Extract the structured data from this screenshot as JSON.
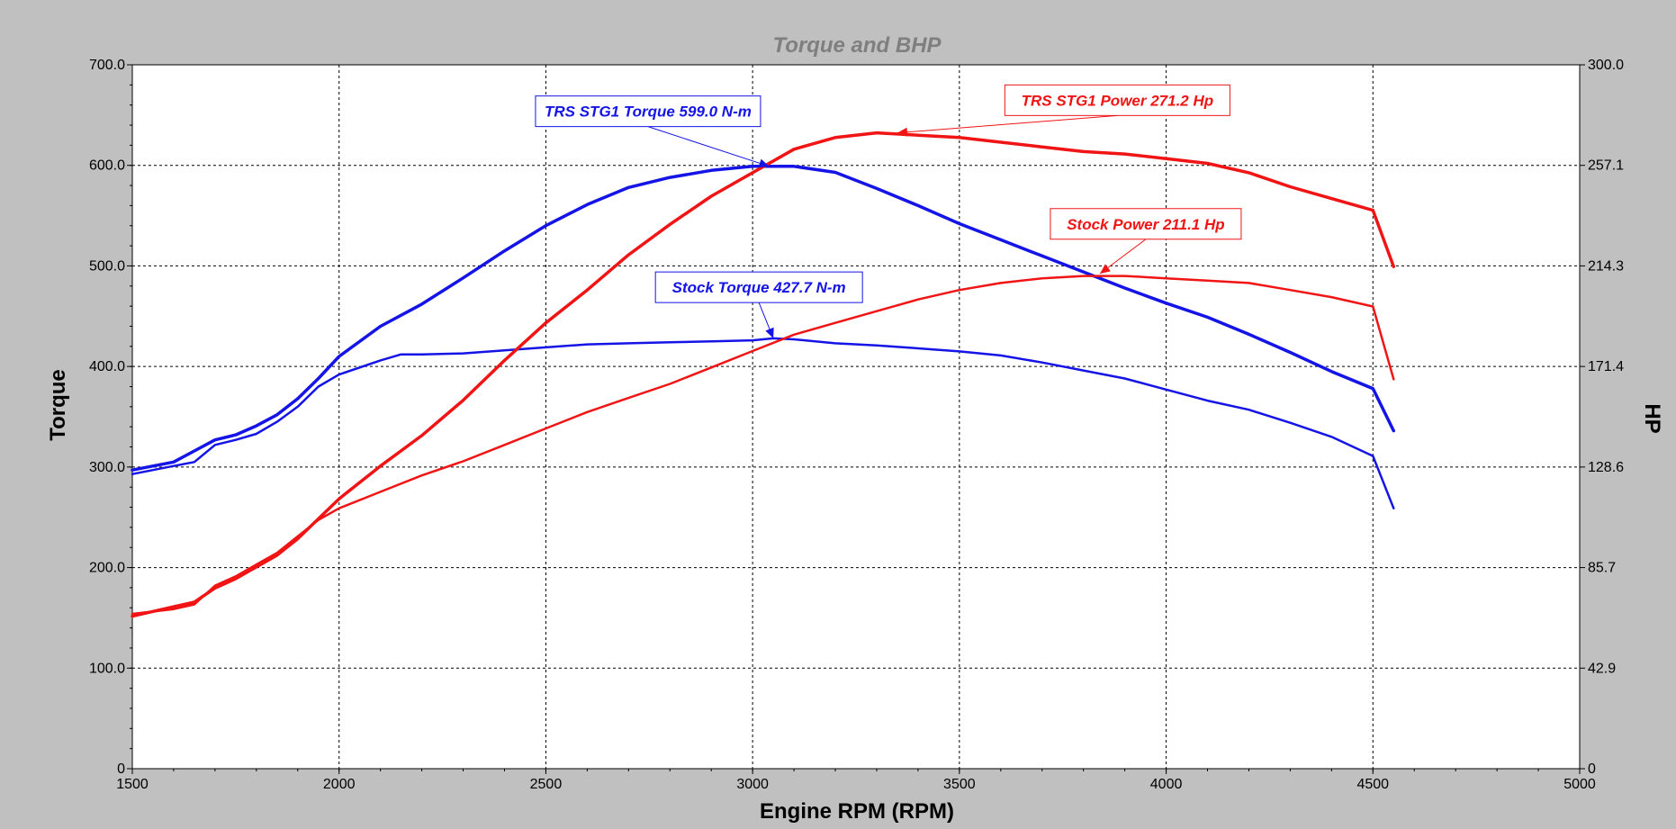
{
  "chart_data": {
    "type": "line",
    "title": "Torque and BHP",
    "xlabel": "Engine RPM (RPM)",
    "ylabel_left": "Torque",
    "ylabel_right": "HP",
    "xlim": [
      1500,
      5000
    ],
    "ylim_left": [
      0,
      700
    ],
    "ylim_right": [
      0,
      300
    ],
    "x_ticks": [
      "1500",
      "2000",
      "2500",
      "3000",
      "3500",
      "4000",
      "4500",
      "5000"
    ],
    "y_ticks_left": [
      "0",
      "100.0",
      "200.0",
      "300.0",
      "400.0",
      "500.0",
      "600.0",
      "700.0"
    ],
    "y_ticks_right": [
      "0",
      "42.9",
      "85.7",
      "128.6",
      "171.4",
      "214.3",
      "257.1",
      "300.0"
    ],
    "grid": true,
    "colors": {
      "torque": "#1414e6",
      "power": "#f01414",
      "background": "#c0c0c0",
      "plot_bg": "#ffffff"
    },
    "series": [
      {
        "axis": "left",
        "color": "#1414e6",
        "width": 3.5,
        "points": [
          [
            1500,
            297
          ],
          [
            1600,
            305
          ],
          [
            1650,
            316
          ],
          [
            1700,
            327
          ],
          [
            1750,
            332
          ],
          [
            1800,
            341
          ],
          [
            1850,
            352
          ],
          [
            1900,
            368
          ],
          [
            1950,
            388
          ],
          [
            2000,
            410
          ],
          [
            2100,
            440
          ],
          [
            2200,
            462
          ],
          [
            2300,
            488
          ],
          [
            2400,
            515
          ],
          [
            2500,
            540
          ],
          [
            2600,
            561
          ],
          [
            2700,
            578
          ],
          [
            2800,
            588
          ],
          [
            2900,
            595
          ],
          [
            3000,
            599
          ],
          [
            3100,
            599
          ],
          [
            3200,
            593
          ],
          [
            3300,
            577
          ],
          [
            3400,
            560
          ],
          [
            3500,
            542
          ],
          [
            3600,
            526
          ],
          [
            3700,
            510
          ],
          [
            3800,
            494
          ],
          [
            3900,
            478
          ],
          [
            4000,
            463
          ],
          [
            4100,
            449
          ],
          [
            4200,
            432
          ],
          [
            4300,
            414
          ],
          [
            4400,
            395
          ],
          [
            4500,
            378
          ],
          [
            4550,
            336
          ]
        ]
      },
      {
        "axis": "left",
        "color": "#1414e6",
        "width": 2.5,
        "points": [
          [
            1500,
            293
          ],
          [
            1600,
            301
          ],
          [
            1650,
            305
          ],
          [
            1700,
            322
          ],
          [
            1750,
            327
          ],
          [
            1800,
            333
          ],
          [
            1850,
            345
          ],
          [
            1900,
            360
          ],
          [
            1950,
            380
          ],
          [
            2000,
            392
          ],
          [
            2100,
            406
          ],
          [
            2150,
            412
          ],
          [
            2200,
            412
          ],
          [
            2300,
            413
          ],
          [
            2400,
            416
          ],
          [
            2500,
            419
          ],
          [
            2600,
            422
          ],
          [
            2700,
            423
          ],
          [
            2800,
            424
          ],
          [
            2900,
            425
          ],
          [
            3000,
            426
          ],
          [
            3050,
            428
          ],
          [
            3100,
            427
          ],
          [
            3200,
            423
          ],
          [
            3300,
            421
          ],
          [
            3400,
            418
          ],
          [
            3500,
            415
          ],
          [
            3600,
            411
          ],
          [
            3700,
            404
          ],
          [
            3800,
            396
          ],
          [
            3900,
            388
          ],
          [
            4000,
            377
          ],
          [
            4100,
            366
          ],
          [
            4200,
            357
          ],
          [
            4300,
            344
          ],
          [
            4400,
            330
          ],
          [
            4500,
            311
          ],
          [
            4550,
            259
          ]
        ]
      },
      {
        "axis": "right",
        "color": "#f01414",
        "width": 3.5,
        "points": [
          [
            1500,
            65
          ],
          [
            1600,
            69
          ],
          [
            1650,
            71
          ],
          [
            1700,
            77
          ],
          [
            1750,
            81
          ],
          [
            1800,
            86
          ],
          [
            1850,
            91
          ],
          [
            1900,
            98
          ],
          [
            2000,
            115
          ],
          [
            2100,
            129
          ],
          [
            2200,
            142
          ],
          [
            2300,
            157
          ],
          [
            2400,
            174
          ],
          [
            2500,
            190
          ],
          [
            2600,
            204
          ],
          [
            2700,
            219
          ],
          [
            2800,
            232
          ],
          [
            2900,
            244
          ],
          [
            3000,
            254
          ],
          [
            3100,
            264
          ],
          [
            3200,
            269
          ],
          [
            3300,
            271
          ],
          [
            3400,
            270
          ],
          [
            3500,
            269
          ],
          [
            3600,
            267
          ],
          [
            3700,
            265
          ],
          [
            3800,
            263
          ],
          [
            3900,
            262
          ],
          [
            4000,
            260
          ],
          [
            4100,
            258
          ],
          [
            4200,
            254
          ],
          [
            4300,
            248
          ],
          [
            4400,
            243
          ],
          [
            4500,
            238
          ],
          [
            4550,
            214
          ]
        ]
      },
      {
        "axis": "right",
        "color": "#f01414",
        "width": 2.5,
        "points": [
          [
            1500,
            66
          ],
          [
            1600,
            68
          ],
          [
            1650,
            70
          ],
          [
            1700,
            78
          ],
          [
            1750,
            82
          ],
          [
            1800,
            87
          ],
          [
            1850,
            92
          ],
          [
            1900,
            99
          ],
          [
            1950,
            106
          ],
          [
            2000,
            111
          ],
          [
            2100,
            118
          ],
          [
            2200,
            125
          ],
          [
            2300,
            131
          ],
          [
            2400,
            138
          ],
          [
            2500,
            145
          ],
          [
            2600,
            152
          ],
          [
            2700,
            158
          ],
          [
            2800,
            164
          ],
          [
            2900,
            171
          ],
          [
            3000,
            178
          ],
          [
            3100,
            185
          ],
          [
            3200,
            190
          ],
          [
            3300,
            195
          ],
          [
            3400,
            200
          ],
          [
            3500,
            204
          ],
          [
            3600,
            207
          ],
          [
            3700,
            209
          ],
          [
            3800,
            210
          ],
          [
            3900,
            210
          ],
          [
            4000,
            209
          ],
          [
            4100,
            208
          ],
          [
            4200,
            207
          ],
          [
            4300,
            204
          ],
          [
            4400,
            201
          ],
          [
            4500,
            197
          ],
          [
            4550,
            166
          ]
        ]
      }
    ],
    "annotations": [
      {
        "label": "TRS STG1 Torque 599.0 N-m",
        "color": "#1414e6",
        "box_x": 2475,
        "box_y": 669,
        "box_w": 250,
        "box_h": 34,
        "target_x": 3040,
        "target_y": 599,
        "axis": "left"
      },
      {
        "label": "TRS STG1 Power 271.2 Hp",
        "color": "#f01414",
        "box_x": 3610,
        "box_y": 680,
        "box_w": 250,
        "box_h": 34,
        "target_x": 3350,
        "target_y": 271,
        "axis": "right"
      },
      {
        "label": "Stock Power 211.1 Hp",
        "color": "#f01414",
        "box_x": 3720,
        "box_y": 557,
        "box_w": 212,
        "box_h": 34,
        "target_x": 3840,
        "target_y": 211,
        "axis": "right"
      },
      {
        "label": "Stock Torque 427.7 N-m",
        "color": "#1414e6",
        "box_x": 2765,
        "box_y": 494,
        "box_w": 230,
        "box_h": 34,
        "target_x": 3050,
        "target_y": 428,
        "axis": "left"
      }
    ]
  }
}
